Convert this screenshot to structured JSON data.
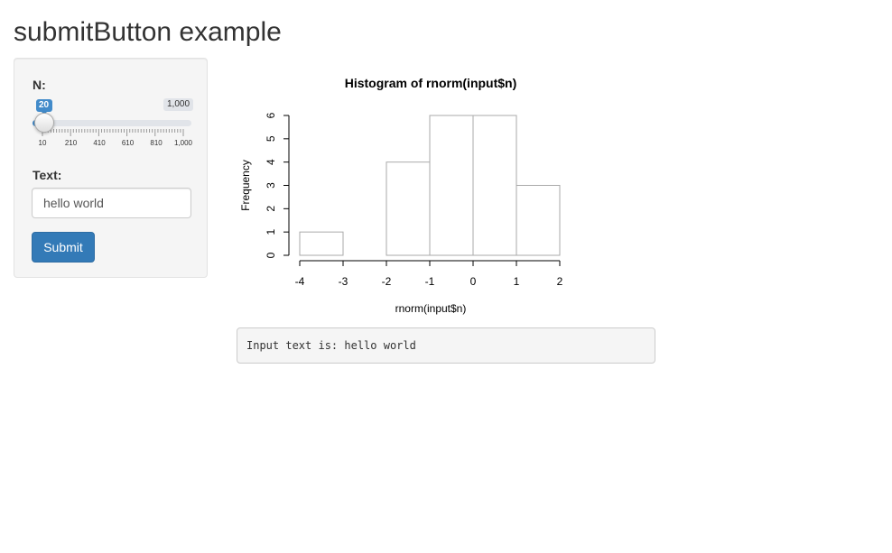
{
  "page": {
    "title": "submitButton example"
  },
  "sidebar": {
    "slider": {
      "label": "N:",
      "value": 20,
      "value_label": "20",
      "max_label": "1,000",
      "min": 10,
      "max": 1000,
      "major_tick_values": [
        10,
        210,
        410,
        610,
        810,
        1000
      ],
      "major_tick_labels": [
        "10",
        "210",
        "410",
        "610",
        "810",
        "1,000"
      ],
      "accent_color": "#428bca"
    },
    "text": {
      "label": "Text:",
      "value": "hello world"
    },
    "submit_label": "Submit"
  },
  "main": {
    "output_text": "Input text is: hello world"
  },
  "chart_data": {
    "type": "bar",
    "title": "Histogram of rnorm(input$n)",
    "xlabel": "rnorm(input$n)",
    "ylabel": "Frequency",
    "bins": [
      [
        -4,
        -3
      ],
      [
        -3,
        -2
      ],
      [
        -2,
        -1
      ],
      [
        -1,
        0
      ],
      [
        0,
        1
      ],
      [
        1,
        2
      ]
    ],
    "values": [
      1,
      0,
      4,
      6,
      6,
      3
    ],
    "xlim": [
      -4,
      2
    ],
    "ylim": [
      0,
      6
    ],
    "x_ticks": [
      -4,
      -3,
      -2,
      -1,
      0,
      1,
      2
    ],
    "x_tick_labels": [
      "-4",
      "-3",
      "-2",
      "-1",
      "0",
      "1",
      "2"
    ],
    "y_ticks": [
      0,
      1,
      2,
      3,
      4,
      5,
      6
    ],
    "y_tick_labels": [
      "0",
      "1",
      "2",
      "3",
      "4",
      "5",
      "6"
    ],
    "grid": false
  }
}
